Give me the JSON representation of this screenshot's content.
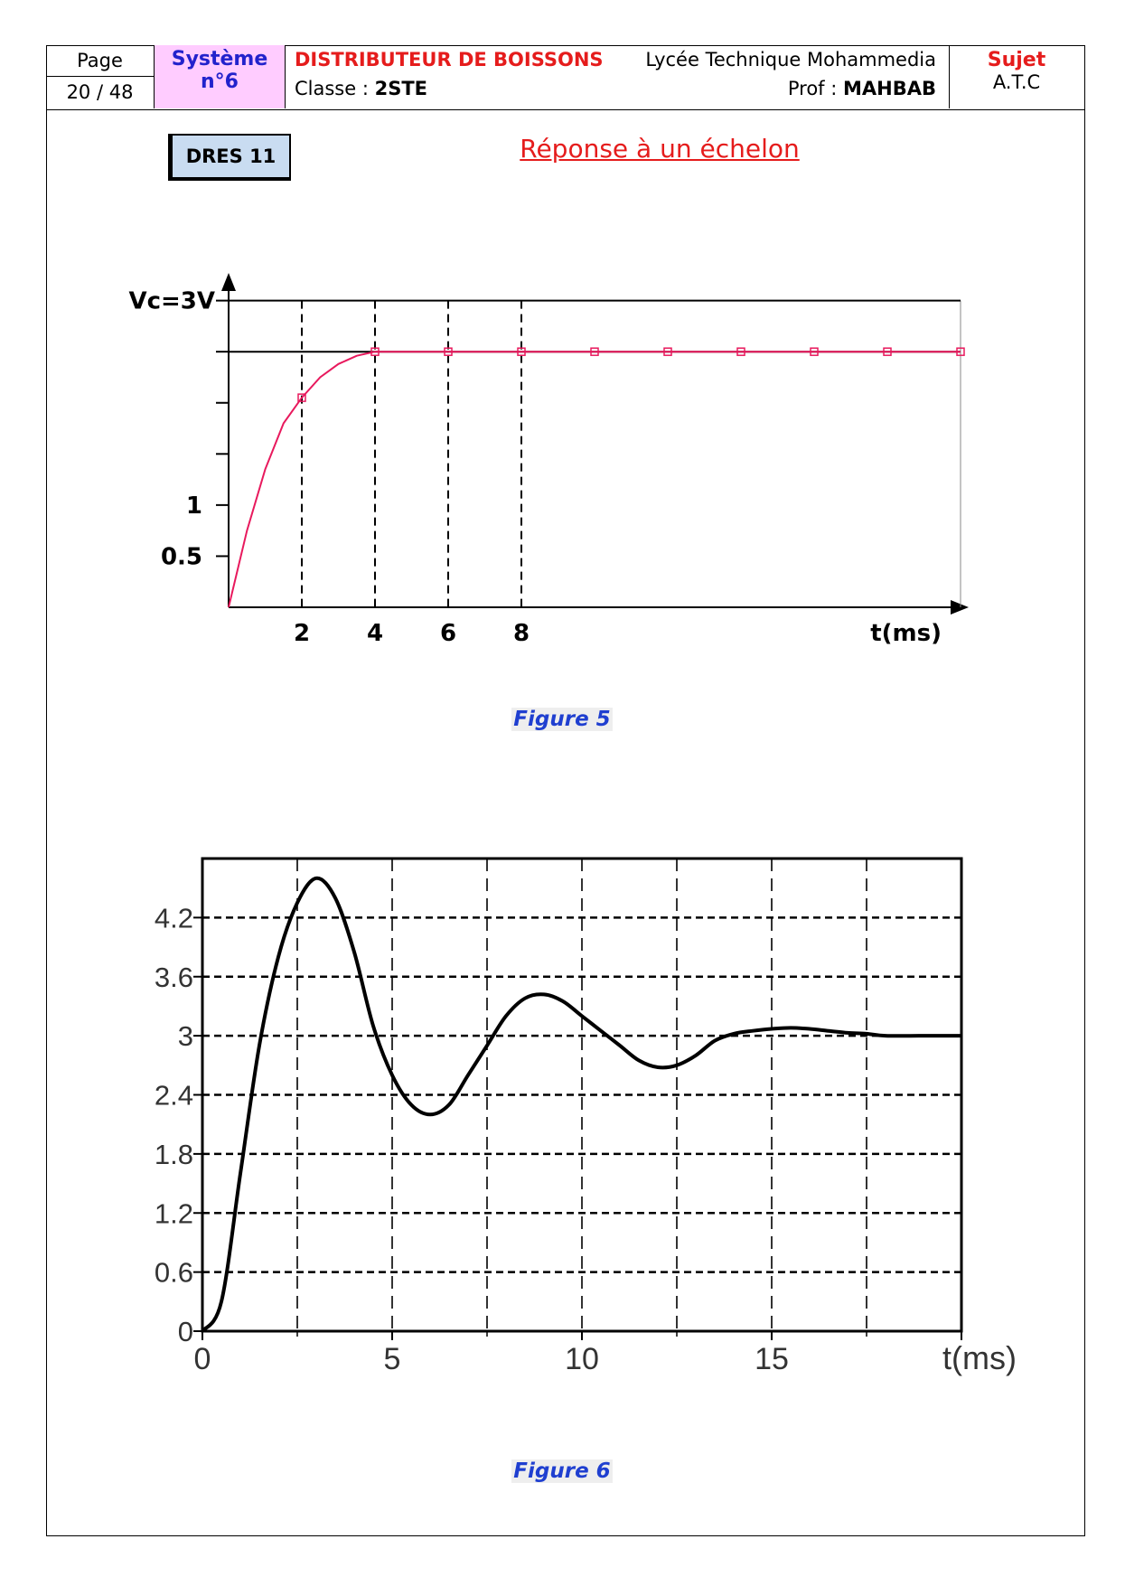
{
  "header": {
    "page_label": "Page",
    "page_number": "20 / 48",
    "system_label": "Système",
    "system_number": "n°6",
    "title": "DISTRIBUTEUR DE BOISSONS",
    "school": "Lycée Technique Mohammedia",
    "class_label": "Classe : ",
    "class_value": "2STE",
    "prof_label": "Prof : ",
    "prof_value": "MAHBAB",
    "subject_label": "Sujet",
    "subject_value": "A.T.C"
  },
  "dres_label": "DRES 11",
  "section_title": "Réponse à un échelon",
  "figure5": {
    "caption": "Figure 5",
    "chart_data": {
      "type": "line",
      "title": "",
      "xlabel": "t(ms)",
      "ylabel": "",
      "xlim": [
        0,
        20
      ],
      "ylim": [
        0,
        3.2
      ],
      "x_ticks": [
        2,
        4,
        6,
        8
      ],
      "y_tick_labels": [
        {
          "value": 0.5,
          "label": "0.5"
        },
        {
          "value": 1,
          "label": "1"
        },
        {
          "value": 3,
          "label": "Vc=3V"
        }
      ],
      "y_minor_ticks": [
        1.5,
        2,
        2.5
      ],
      "reference_lines": [
        3,
        2.5
      ],
      "series": [
        {
          "color": "#e8195d",
          "x": [
            0,
            0.5,
            1,
            1.5,
            2,
            2.5,
            3,
            3.5,
            4,
            6,
            8,
            10,
            12,
            14,
            16,
            18,
            20
          ],
          "y": [
            0,
            0.75,
            1.35,
            1.8,
            2.05,
            2.25,
            2.38,
            2.46,
            2.5,
            2.5,
            2.5,
            2.5,
            2.5,
            2.5,
            2.5,
            2.5,
            2.5
          ],
          "markers_x": [
            2,
            4,
            6,
            8,
            10,
            12,
            14,
            16,
            18,
            20
          ]
        }
      ]
    }
  },
  "figure6": {
    "caption": "Figure 6",
    "chart_data": {
      "type": "line",
      "title": "",
      "xlabel": "t(ms)",
      "ylabel": "",
      "xlim": [
        0,
        20
      ],
      "ylim": [
        0,
        4.8
      ],
      "x_tick_labels": [
        0,
        5,
        10,
        15
      ],
      "x_grid": [
        2.5,
        5,
        7.5,
        10,
        12.5,
        15,
        17.5
      ],
      "y_tick_labels": [
        "0",
        "0.6",
        "1.2",
        "1.8",
        "2.4",
        "3",
        "3.6",
        "4.2"
      ],
      "y_ticks": [
        0,
        0.6,
        1.2,
        1.8,
        2.4,
        3,
        3.6,
        4.2
      ],
      "series": [
        {
          "color": "#000000",
          "x": [
            0,
            0.5,
            1,
            1.5,
            2,
            2.5,
            3,
            3.5,
            4,
            4.5,
            5,
            5.5,
            6,
            6.5,
            7,
            7.5,
            8,
            8.5,
            9,
            9.5,
            10,
            10.5,
            11,
            11.5,
            12,
            12.5,
            13,
            13.5,
            14,
            14.5,
            15,
            15.5,
            16,
            16.5,
            17,
            17.5,
            18,
            19,
            20
          ],
          "y": [
            0,
            0.3,
            1.6,
            2.9,
            3.8,
            4.35,
            4.6,
            4.4,
            3.85,
            3.1,
            2.6,
            2.3,
            2.2,
            2.3,
            2.6,
            2.9,
            3.2,
            3.38,
            3.42,
            3.35,
            3.2,
            3.05,
            2.9,
            2.75,
            2.68,
            2.7,
            2.8,
            2.95,
            3.02,
            3.05,
            3.07,
            3.08,
            3.07,
            3.05,
            3.03,
            3.02,
            3.0,
            3.0,
            3.0
          ]
        }
      ]
    }
  }
}
